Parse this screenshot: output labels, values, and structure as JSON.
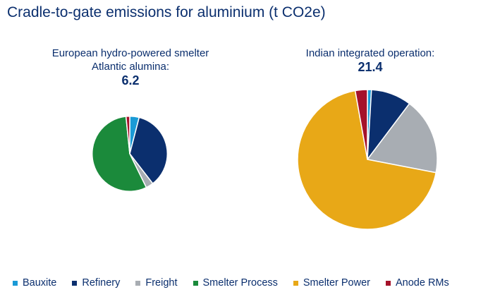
{
  "chart_data": {
    "type": "pie",
    "title": "Cradle-to-gate emissions for aluminium (t CO2e)",
    "categories": [
      "Bauxite",
      "Refinery",
      "Freight",
      "Smelter Process",
      "Smelter Power",
      "Anode RMs"
    ],
    "colors": [
      "#1a9ad6",
      "#0b2f6e",
      "#a8adb3",
      "#1b8a3b",
      "#e8a817",
      "#a5122a"
    ],
    "legend_position": "bottom",
    "series": [
      {
        "name": "European hydro-powered smelter Atlantic alumina:",
        "total": "6.2",
        "values": [
          0.25,
          2.2,
          0.2,
          3.45,
          0.0,
          0.1
        ]
      },
      {
        "name": "Indian integrated operation:",
        "total": "21.4",
        "values": [
          0.2,
          2.0,
          3.8,
          0.0,
          14.8,
          0.6
        ]
      }
    ]
  }
}
